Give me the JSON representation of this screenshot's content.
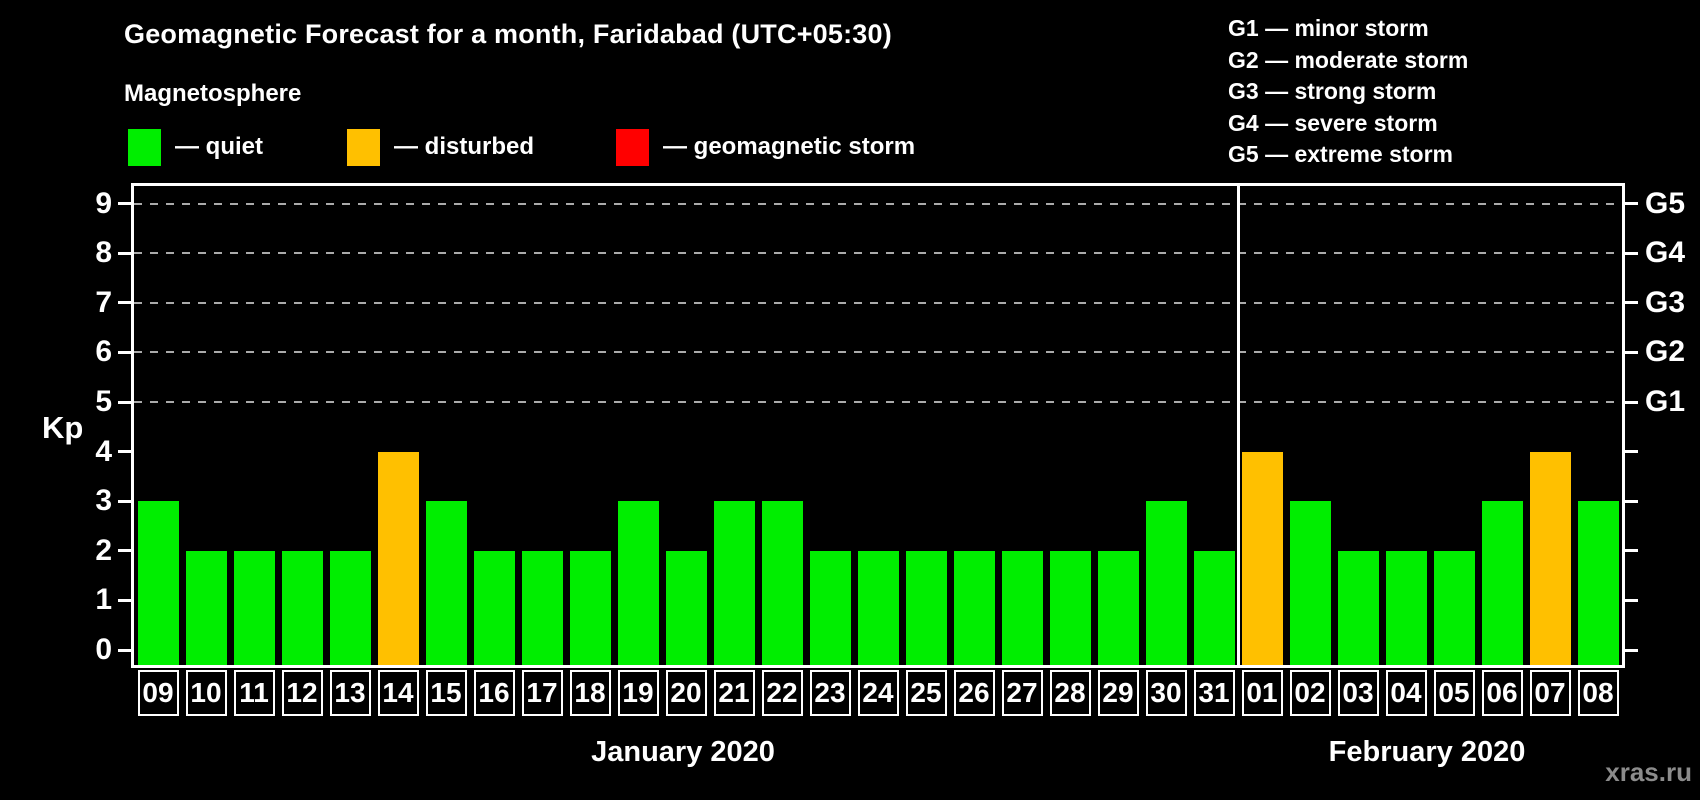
{
  "title": "Geomagnetic Forecast for a month, Faridabad (UTC+05:30)",
  "subtitle": "Magnetosphere",
  "legend": {
    "items": [
      {
        "name": "quiet",
        "label": "— quiet",
        "color": "#00ee00"
      },
      {
        "name": "disturbed",
        "label": "— disturbed",
        "color": "#ffc000"
      },
      {
        "name": "storm",
        "label": "— geomagnetic storm",
        "color": "#ff0000"
      }
    ]
  },
  "storm_scale_legend": {
    "g1": "G1 — minor storm",
    "g2": "G2 — moderate storm",
    "g3": "G3 — strong storm",
    "g4": "G4 — severe storm",
    "g5": "G5 — extreme storm"
  },
  "watermark": "xras.ru",
  "chart_data": {
    "type": "bar",
    "title": "Geomagnetic Forecast for a month, Faridabad (UTC+05:30)",
    "xlabel": "",
    "ylabel": "Kp",
    "ylim": [
      0,
      9
    ],
    "yticks": [
      0,
      1,
      2,
      3,
      4,
      5,
      6,
      7,
      8,
      9
    ],
    "gridlines_at": [
      5,
      6,
      7,
      8,
      9
    ],
    "grid": "dashed-horizontal",
    "legend_position": "top",
    "right_axis_labels": [
      {
        "label": "G1",
        "kp": 5
      },
      {
        "label": "G2",
        "kp": 6
      },
      {
        "label": "G3",
        "kp": 7
      },
      {
        "label": "G4",
        "kp": 8
      },
      {
        "label": "G5",
        "kp": 9
      }
    ],
    "categories": [
      "09",
      "10",
      "11",
      "12",
      "13",
      "14",
      "15",
      "16",
      "17",
      "18",
      "19",
      "20",
      "21",
      "22",
      "23",
      "24",
      "25",
      "26",
      "27",
      "28",
      "29",
      "30",
      "31",
      "01",
      "02",
      "03",
      "04",
      "05",
      "06",
      "07",
      "08"
    ],
    "values": [
      3,
      2,
      2,
      2,
      2,
      4,
      3,
      2,
      2,
      2,
      3,
      2,
      3,
      3,
      2,
      2,
      2,
      2,
      2,
      2,
      2,
      3,
      2,
      4,
      3,
      2,
      2,
      2,
      3,
      4,
      3
    ],
    "statuses": [
      "quiet",
      "quiet",
      "quiet",
      "quiet",
      "quiet",
      "disturbed",
      "quiet",
      "quiet",
      "quiet",
      "quiet",
      "quiet",
      "quiet",
      "quiet",
      "quiet",
      "quiet",
      "quiet",
      "quiet",
      "quiet",
      "quiet",
      "quiet",
      "quiet",
      "quiet",
      "quiet",
      "disturbed",
      "quiet",
      "quiet",
      "quiet",
      "quiet",
      "quiet",
      "disturbed",
      "quiet"
    ],
    "colors": {
      "quiet": "#00ee00",
      "disturbed": "#ffc000",
      "storm": "#ff0000"
    },
    "months": [
      {
        "label": "January 2020",
        "days": 23
      },
      {
        "label": "February 2020",
        "days": 8
      }
    ]
  }
}
